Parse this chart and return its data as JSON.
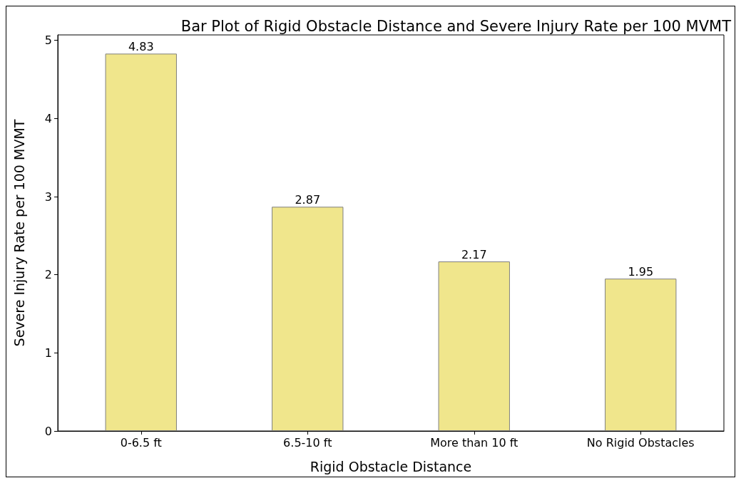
{
  "chart_data": {
    "type": "bar",
    "title": "Bar Plot of Rigid Obstacle Distance and Severe Injury Rate per 100 MVMT",
    "xlabel": "Rigid Obstacle Distance",
    "ylabel": "Severe Injury Rate per 100 MVMT",
    "categories": [
      "0-6.5 ft",
      "6.5-10 ft",
      "More than 10 ft",
      "No Rigid Obstacles"
    ],
    "values": [
      4.83,
      2.87,
      2.17,
      1.95
    ],
    "color": "#f0e68c",
    "ylim": [
      0,
      5.07
    ],
    "yticks": [
      0,
      1,
      2,
      3,
      4,
      5
    ],
    "grid": false,
    "data_labels": true
  }
}
